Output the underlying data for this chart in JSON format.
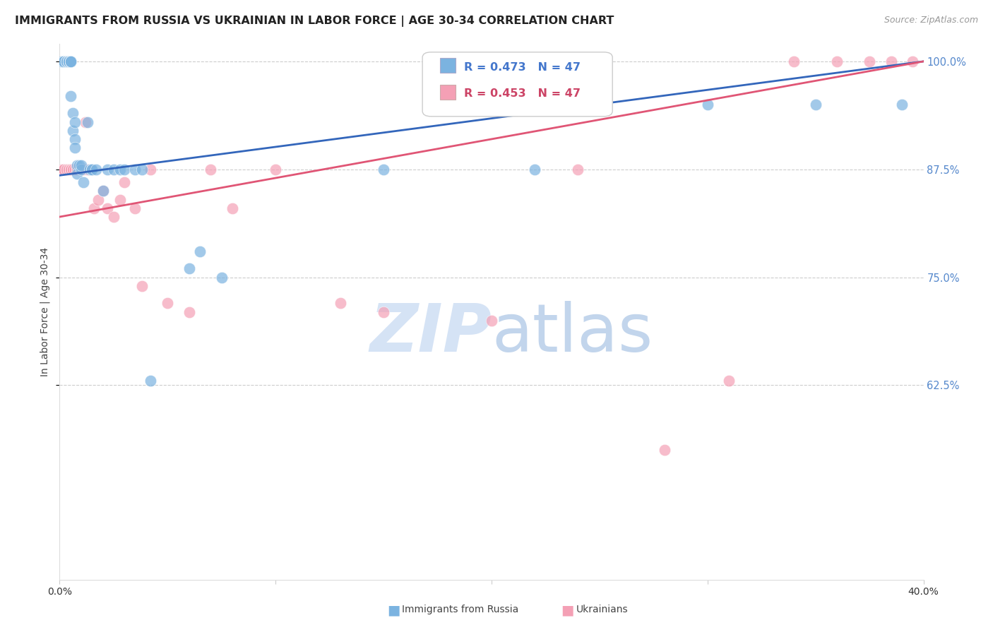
{
  "title": "IMMIGRANTS FROM RUSSIA VS UKRAINIAN IN LABOR FORCE | AGE 30-34 CORRELATION CHART",
  "source": "Source: ZipAtlas.com",
  "ylabel": "In Labor Force | Age 30-34",
  "xlim": [
    0.0,
    0.4
  ],
  "ylim": [
    0.4,
    1.02
  ],
  "yticks": [
    0.625,
    0.75,
    0.875,
    1.0
  ],
  "ytick_labels": [
    "62.5%",
    "75.0%",
    "87.5%",
    "100.0%"
  ],
  "blue_R": 0.473,
  "blue_N": 47,
  "pink_R": 0.453,
  "pink_N": 47,
  "blue_color": "#7BB3E0",
  "pink_color": "#F4A0B5",
  "blue_line_color": "#3366BB",
  "pink_line_color": "#E05575",
  "watermark_zip_color": "#D0DCF0",
  "watermark_atlas_color": "#C0D0E8",
  "background_color": "#FFFFFF",
  "blue_x": [
    0.001,
    0.002,
    0.002,
    0.003,
    0.003,
    0.003,
    0.004,
    0.004,
    0.004,
    0.004,
    0.005,
    0.005,
    0.005,
    0.005,
    0.005,
    0.006,
    0.006,
    0.007,
    0.007,
    0.007,
    0.008,
    0.008,
    0.009,
    0.01,
    0.01,
    0.011,
    0.013,
    0.014,
    0.015,
    0.015,
    0.017,
    0.02,
    0.022,
    0.025,
    0.028,
    0.03,
    0.035,
    0.038,
    0.042,
    0.06,
    0.065,
    0.075,
    0.15,
    0.22,
    0.3,
    0.35,
    0.39
  ],
  "blue_y": [
    1.0,
    1.0,
    1.0,
    1.0,
    1.0,
    1.0,
    1.0,
    1.0,
    1.0,
    1.0,
    1.0,
    1.0,
    1.0,
    1.0,
    0.96,
    0.94,
    0.92,
    0.93,
    0.91,
    0.9,
    0.88,
    0.87,
    0.88,
    0.875,
    0.88,
    0.86,
    0.93,
    0.875,
    0.875,
    0.875,
    0.875,
    0.85,
    0.875,
    0.875,
    0.875,
    0.875,
    0.875,
    0.875,
    0.63,
    0.76,
    0.78,
    0.75,
    0.875,
    0.875,
    0.95,
    0.95,
    0.95
  ],
  "pink_x": [
    0.001,
    0.002,
    0.002,
    0.003,
    0.003,
    0.004,
    0.004,
    0.005,
    0.005,
    0.005,
    0.006,
    0.006,
    0.007,
    0.008,
    0.008,
    0.009,
    0.01,
    0.011,
    0.012,
    0.013,
    0.015,
    0.016,
    0.018,
    0.02,
    0.022,
    0.025,
    0.028,
    0.03,
    0.035,
    0.038,
    0.042,
    0.05,
    0.06,
    0.07,
    0.08,
    0.1,
    0.13,
    0.15,
    0.2,
    0.24,
    0.28,
    0.31,
    0.34,
    0.36,
    0.375,
    0.385,
    0.395
  ],
  "pink_y": [
    0.875,
    0.875,
    0.875,
    0.875,
    0.875,
    0.875,
    0.875,
    0.875,
    0.875,
    0.875,
    0.875,
    0.875,
    0.875,
    0.875,
    0.875,
    0.875,
    0.875,
    0.875,
    0.93,
    0.875,
    0.875,
    0.83,
    0.84,
    0.85,
    0.83,
    0.82,
    0.84,
    0.86,
    0.83,
    0.74,
    0.875,
    0.72,
    0.71,
    0.875,
    0.83,
    0.875,
    0.72,
    0.71,
    0.7,
    0.875,
    0.55,
    0.63,
    1.0,
    1.0,
    1.0,
    1.0,
    1.0
  ],
  "blue_line_x0": 0.0,
  "blue_line_y0": 0.868,
  "blue_line_x1": 0.4,
  "blue_line_y1": 1.0,
  "pink_line_x0": 0.0,
  "pink_line_y0": 0.82,
  "pink_line_x1": 0.4,
  "pink_line_y1": 1.0
}
